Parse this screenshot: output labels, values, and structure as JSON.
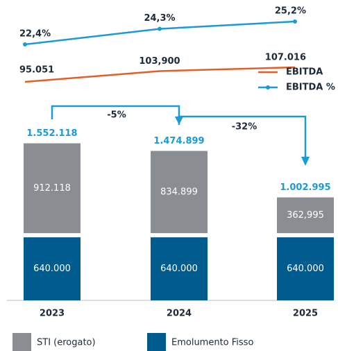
{
  "chart_data": {
    "type": "bar",
    "categories": [
      "2023",
      "2024",
      "2025"
    ],
    "series": [
      {
        "name": "STI (erogato)",
        "color": "#8a8d91",
        "values": [
          912118,
          834899,
          362995
        ],
        "value_labels": [
          "912.118",
          "834.899",
          "362,995"
        ]
      },
      {
        "name": "Emolumento Fisso",
        "color": "#005b8e",
        "values": [
          640000,
          640000,
          640000
        ],
        "value_labels": [
          "640.000",
          "640.000",
          "640.000"
        ]
      }
    ],
    "totals": {
      "values": [
        1552118,
        1474899,
        1002995
      ],
      "value_labels": [
        "1.552.118",
        "1.474.899",
        "1.002.995"
      ],
      "color": "#1a9ad6"
    },
    "lines": [
      {
        "name": "EBITDA",
        "color": "#e35f25",
        "values": [
          95051,
          103900,
          107016
        ],
        "value_labels": [
          "95.051",
          "103,900",
          "107.016"
        ]
      },
      {
        "name": "EBITDA %",
        "color": "#1a9ad6",
        "values": [
          22.4,
          24.3,
          25.2
        ],
        "value_labels": [
          "22,4%",
          "24,3%",
          "25,2%"
        ]
      }
    ],
    "annotations": [
      "-5%",
      "-32%"
    ]
  }
}
